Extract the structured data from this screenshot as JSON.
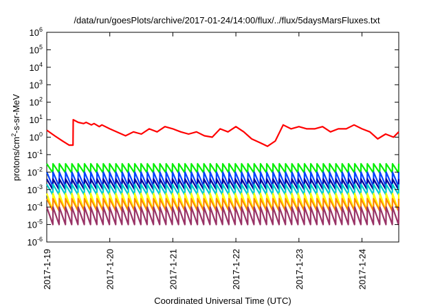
{
  "chart_data": {
    "type": "line",
    "title": "/data/run/goesPlots/archive/2017-01-24/14:00/flux/../flux/5daysMarsFluxes.txt",
    "xlabel": "Coordinated Universal Time (UTC)",
    "ylabel": {
      "base": "protons/cm",
      "sup": "2",
      "rest": "-s-sr-MeV"
    },
    "y_scale": "log",
    "ylim": [
      1e-06,
      1000000.0
    ],
    "y_ticks": [
      {
        "value": 1e-06,
        "base": "10",
        "exp": "-6"
      },
      {
        "value": 1e-05,
        "base": "10",
        "exp": "-5"
      },
      {
        "value": 0.0001,
        "base": "10",
        "exp": "-4"
      },
      {
        "value": 0.001,
        "base": "10",
        "exp": "-3"
      },
      {
        "value": 0.01,
        "base": "10",
        "exp": "-2"
      },
      {
        "value": 0.1,
        "base": "10",
        "exp": "-1"
      },
      {
        "value": 1,
        "base": "10",
        "exp": "0"
      },
      {
        "value": 10,
        "base": "10",
        "exp": "1"
      },
      {
        "value": 100,
        "base": "10",
        "exp": "2"
      },
      {
        "value": 1000,
        "base": "10",
        "exp": "3"
      },
      {
        "value": 10000,
        "base": "10",
        "exp": "4"
      },
      {
        "value": 100000,
        "base": "10",
        "exp": "5"
      },
      {
        "value": 1000000,
        "base": "10",
        "exp": "6"
      }
    ],
    "xlim": [
      "2017-01-19T00:00",
      "2017-01-24T14:00"
    ],
    "x_ticks": [
      "2017-1-19",
      "2017-1-20",
      "2017-1-21",
      "2017-1-22",
      "2017-1-23",
      "2017-1-24"
    ],
    "grid": false,
    "legend": "none",
    "series": [
      {
        "color": "#ff0000",
        "x": [
          "2017-01-19T00:00",
          "2017-01-19T03:00",
          "2017-01-19T06:00",
          "2017-01-19T08:30",
          "2017-01-19T10:00",
          "2017-01-19T10:05",
          "2017-01-19T12:00",
          "2017-01-19T14:00",
          "2017-01-19T15:00",
          "2017-01-19T17:00",
          "2017-01-19T18:00",
          "2017-01-19T20:00",
          "2017-01-19T21:00",
          "2017-01-20T00:00",
          "2017-01-20T06:00",
          "2017-01-20T09:00",
          "2017-01-20T12:00",
          "2017-01-20T15:00",
          "2017-01-20T18:00",
          "2017-01-20T21:00",
          "2017-01-21T00:00",
          "2017-01-21T03:00",
          "2017-01-21T06:00",
          "2017-01-21T09:00",
          "2017-01-21T12:00",
          "2017-01-21T15:00",
          "2017-01-21T18:00",
          "2017-01-21T21:00",
          "2017-01-22T00:00",
          "2017-01-22T03:00",
          "2017-01-22T06:00",
          "2017-01-22T09:00",
          "2017-01-22T12:00",
          "2017-01-22T15:00",
          "2017-01-22T18:00",
          "2017-01-22T21:00",
          "2017-01-23T00:00",
          "2017-01-23T03:00",
          "2017-01-23T06:00",
          "2017-01-23T09:00",
          "2017-01-23T12:00",
          "2017-01-23T15:00",
          "2017-01-23T18:00",
          "2017-01-23T21:00",
          "2017-01-24T00:00",
          "2017-01-24T03:00",
          "2017-01-24T06:00",
          "2017-01-24T09:00",
          "2017-01-24T12:00",
          "2017-01-24T14:00"
        ],
        "y": [
          2.5,
          1.2,
          0.6,
          0.35,
          0.35,
          10,
          7,
          6,
          7,
          5,
          6,
          4,
          5,
          3,
          1.2,
          2,
          1.5,
          3,
          2,
          4,
          3,
          2,
          1.5,
          2,
          1.2,
          1,
          3,
          2,
          4,
          2,
          0.8,
          0.5,
          0.3,
          0.6,
          5,
          3,
          4,
          3,
          3,
          4,
          2,
          3,
          3,
          5,
          3,
          2,
          0.8,
          1.5,
          1,
          2
        ]
      },
      {
        "color": "#00ee00",
        "base": 0.03,
        "low_ratio": 0.3,
        "teeth": 56
      },
      {
        "color": "#0044ff",
        "base": 0.01,
        "low_ratio": 0.15,
        "teeth": 56
      },
      {
        "color": "#000099",
        "base": 0.004,
        "low_ratio": 0.25,
        "teeth": 56
      },
      {
        "color": "#00cccc",
        "base": 0.002,
        "low_ratio": 0.25,
        "teeth": 56
      },
      {
        "color": "#ffff00",
        "base": 0.0006,
        "low_ratio": 0.1,
        "teeth": 56
      },
      {
        "color": "#ff8800",
        "base": 0.0003,
        "low_ratio": 0.2,
        "teeth": 56
      },
      {
        "color": "#993366",
        "base": 0.0001,
        "low_ratio": 0.1,
        "teeth": 56
      }
    ]
  }
}
